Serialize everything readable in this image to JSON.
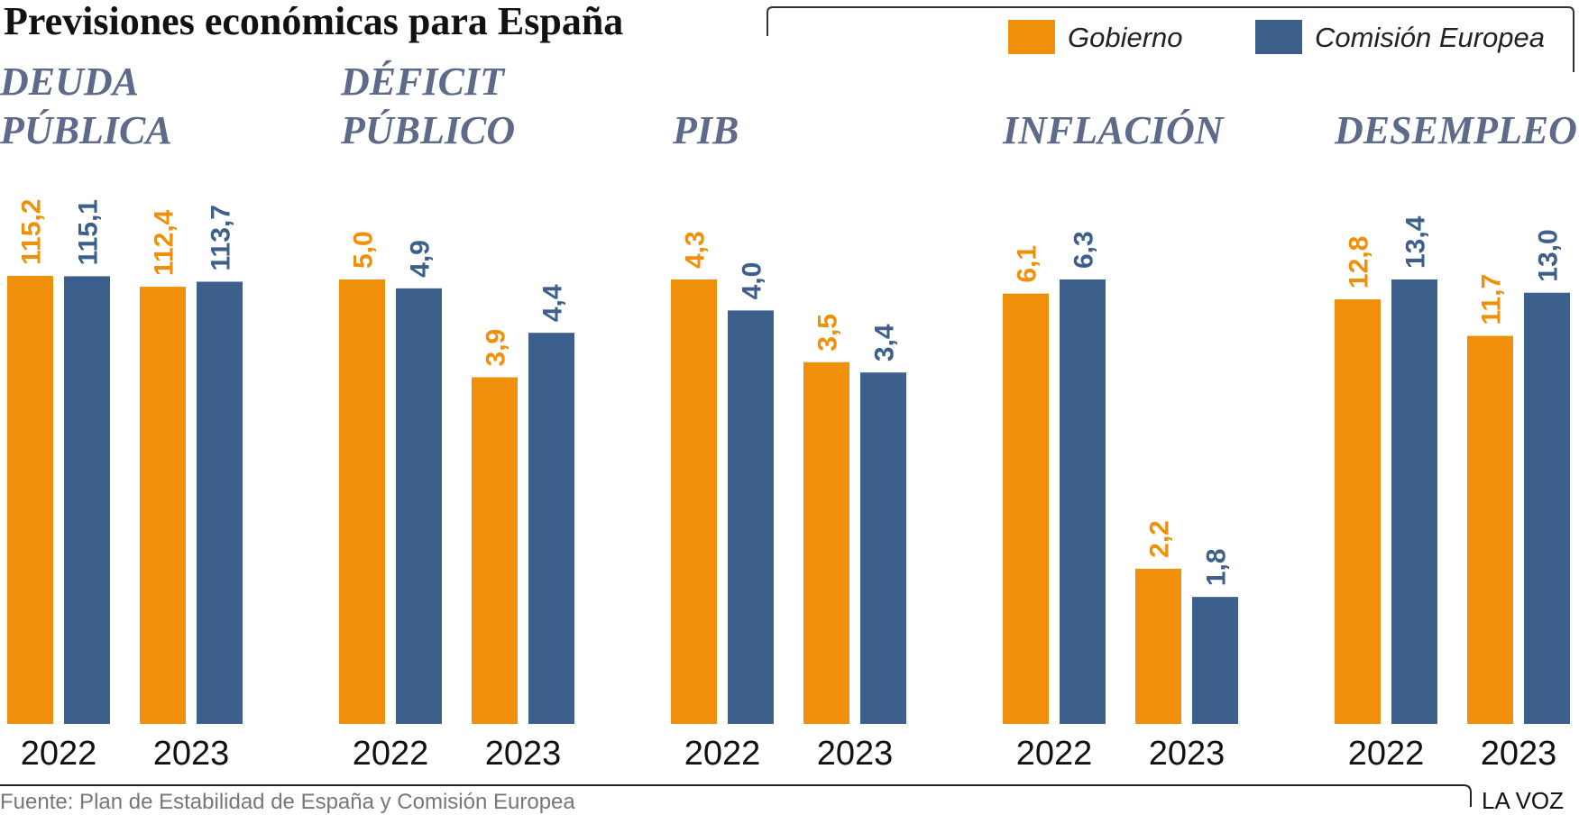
{
  "title": "Previsiones económicas para España",
  "legend": [
    {
      "label": "Gobierno",
      "color": "#f0900a"
    },
    {
      "label": "Comisión Europea",
      "color": "#3d5f8b"
    }
  ],
  "source": "Fuente: Plan de Estabilidad de España y Comisión Europea",
  "brand": "LA VOZ",
  "chart_data": [
    {
      "type": "bar",
      "title_lines": [
        "DEUDA",
        "PÚBLICA"
      ],
      "categories": [
        "2022",
        "2023"
      ],
      "series": [
        {
          "name": "Gobierno",
          "values": [
            115.2,
            112.4
          ],
          "labels": [
            "115,2",
            "112,4"
          ]
        },
        {
          "name": "Comisión Europea",
          "values": [
            115.1,
            113.7
          ],
          "labels": [
            "115,1",
            "113,7"
          ]
        }
      ]
    },
    {
      "type": "bar",
      "title_lines": [
        "DÉFICIT",
        "PÚBLICO"
      ],
      "categories": [
        "2022",
        "2023"
      ],
      "series": [
        {
          "name": "Gobierno",
          "values": [
            5.0,
            3.9
          ],
          "labels": [
            "5,0",
            "3,9"
          ]
        },
        {
          "name": "Comisión Europea",
          "values": [
            4.9,
            4.4
          ],
          "labels": [
            "4,9",
            "4,4"
          ]
        }
      ]
    },
    {
      "type": "bar",
      "title_lines": [
        "",
        "PIB"
      ],
      "categories": [
        "2022",
        "2023"
      ],
      "series": [
        {
          "name": "Gobierno",
          "values": [
            4.3,
            3.5
          ],
          "labels": [
            "4,3",
            "3,5"
          ]
        },
        {
          "name": "Comisión Europea",
          "values": [
            4.0,
            3.4
          ],
          "labels": [
            "4,0",
            "3,4"
          ]
        }
      ]
    },
    {
      "type": "bar",
      "title_lines": [
        "",
        "INFLACIÓN"
      ],
      "categories": [
        "2022",
        "2023"
      ],
      "series": [
        {
          "name": "Gobierno",
          "values": [
            6.1,
            2.2
          ],
          "labels": [
            "6,1",
            "2,2"
          ]
        },
        {
          "name": "Comisión Europea",
          "values": [
            6.3,
            1.8
          ],
          "labels": [
            "6,3",
            "1,8"
          ]
        }
      ]
    },
    {
      "type": "bar",
      "title_lines": [
        "",
        "DESEMPLEO"
      ],
      "categories": [
        "2022",
        "2023"
      ],
      "series": [
        {
          "name": "Gobierno",
          "values": [
            12.8,
            11.7
          ],
          "labels": [
            "12,8",
            "11,7"
          ]
        },
        {
          "name": "Comisión Europea",
          "values": [
            13.4,
            13.0
          ],
          "labels": [
            "13,4",
            "13,0"
          ]
        }
      ]
    }
  ]
}
